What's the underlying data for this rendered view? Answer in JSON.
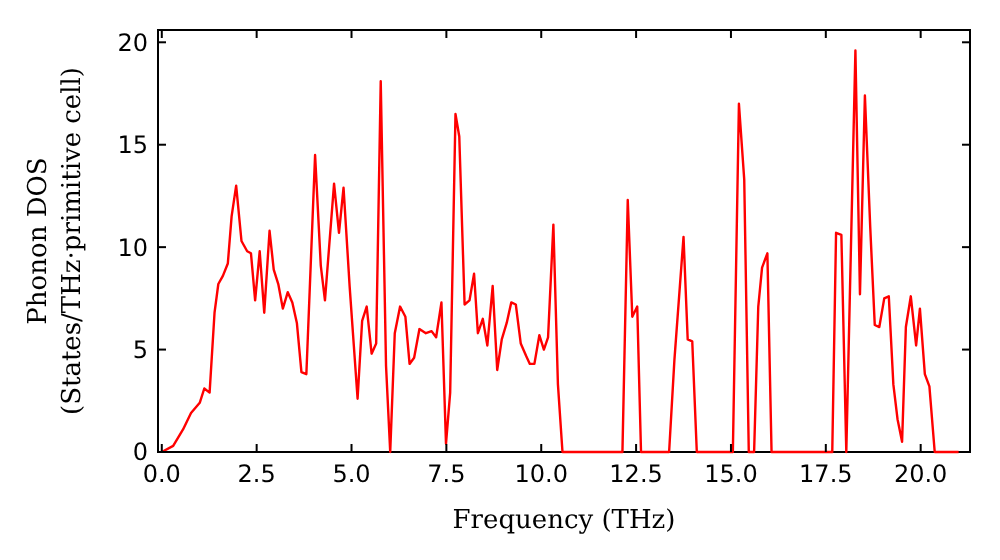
{
  "chart_data": {
    "type": "line",
    "xlabel": "Frequency (THz)",
    "ylabel": "Phonon DOS\n(States/THz·primitive cell)",
    "xlim": [
      -0.1,
      21.3
    ],
    "ylim": [
      0,
      20.6
    ],
    "xticks": [
      {
        "value": 0,
        "label": "0.0"
      },
      {
        "value": 2.5,
        "label": "2.5"
      },
      {
        "value": 5,
        "label": "5.0"
      },
      {
        "value": 7.5,
        "label": "7.5"
      },
      {
        "value": 10,
        "label": "10.0"
      },
      {
        "value": 12.5,
        "label": "12.5"
      },
      {
        "value": 15,
        "label": "15.0"
      },
      {
        "value": 17.5,
        "label": "17.5"
      },
      {
        "value": 20,
        "label": "20.0"
      }
    ],
    "yticks": [
      0,
      5,
      10,
      15,
      20
    ],
    "grid": false,
    "marker": "none",
    "line_style": "solid",
    "series": [
      {
        "color": "#ff0000",
        "x": [
          0,
          0.3,
          0.56,
          0.77,
          1.0,
          1.12,
          1.26,
          1.39,
          1.49,
          1.61,
          1.74,
          1.84,
          1.96,
          2.1,
          2.25,
          2.35,
          2.46,
          2.58,
          2.7,
          2.84,
          2.95,
          3.07,
          3.19,
          3.32,
          3.44,
          3.56,
          3.68,
          3.81,
          4.04,
          4.19,
          4.3,
          4.54,
          4.67,
          4.79,
          4.95,
          5.16,
          5.28,
          5.4,
          5.53,
          5.65,
          5.77,
          5.91,
          6.02,
          6.14,
          6.28,
          6.42,
          6.53,
          6.65,
          6.79,
          6.96,
          7.11,
          7.23,
          7.37,
          7.49,
          7.6,
          7.74,
          7.84,
          7.98,
          8.11,
          8.23,
          8.33,
          8.46,
          8.58,
          8.72,
          8.84,
          8.96,
          9.09,
          9.21,
          9.33,
          9.46,
          9.6,
          9.7,
          9.82,
          9.95,
          10.07,
          10.18,
          10.32,
          10.44,
          10.56,
          12.14,
          12.28,
          12.4,
          12.53,
          12.63,
          13.37,
          13.51,
          13.75,
          13.86,
          13.98,
          14.1,
          15.05,
          15.21,
          15.35,
          15.47,
          15.61,
          15.72,
          15.82,
          15.96,
          16.07,
          17.67,
          17.77,
          17.91,
          18.04,
          18.28,
          18.4,
          18.53,
          18.67,
          18.79,
          18.91,
          19.04,
          19.16,
          19.28,
          19.39,
          19.51,
          19.61,
          19.74,
          19.88,
          19.98,
          20.11,
          20.23,
          20.37,
          21.0
        ],
        "values": [
          0,
          0.3,
          1.1,
          1.9,
          2.4,
          3.1,
          2.9,
          6.8,
          8.2,
          8.6,
          9.2,
          11.5,
          13.0,
          10.3,
          9.8,
          9.7,
          7.4,
          9.8,
          6.8,
          10.8,
          8.9,
          8.2,
          7.0,
          7.8,
          7.3,
          6.3,
          3.9,
          3.8,
          14.5,
          9.1,
          7.4,
          13.1,
          10.7,
          12.9,
          8.1,
          2.6,
          6.4,
          7.1,
          4.8,
          5.3,
          18.1,
          4.2,
          0,
          5.8,
          7.1,
          6.6,
          4.3,
          4.6,
          6.0,
          5.8,
          5.9,
          5.6,
          7.3,
          0.4,
          2.9,
          16.5,
          15.4,
          7.2,
          7.4,
          8.7,
          5.8,
          6.5,
          5.2,
          8.1,
          4.0,
          5.5,
          6.3,
          7.3,
          7.2,
          5.3,
          4.7,
          4.3,
          4.3,
          5.7,
          5.0,
          5.6,
          11.1,
          3.3,
          0,
          0,
          12.3,
          6.6,
          7.1,
          0,
          0,
          4.5,
          10.5,
          5.5,
          5.4,
          0,
          0,
          17.0,
          13.3,
          0,
          0,
          7.1,
          9.0,
          9.7,
          0,
          0,
          10.7,
          10.6,
          0,
          19.6,
          7.7,
          17.4,
          11.0,
          6.2,
          6.1,
          7.5,
          7.6,
          3.3,
          1.6,
          0.5,
          6.1,
          7.6,
          5.2,
          7.0,
          3.8,
          3.2,
          0,
          0
        ]
      }
    ]
  }
}
